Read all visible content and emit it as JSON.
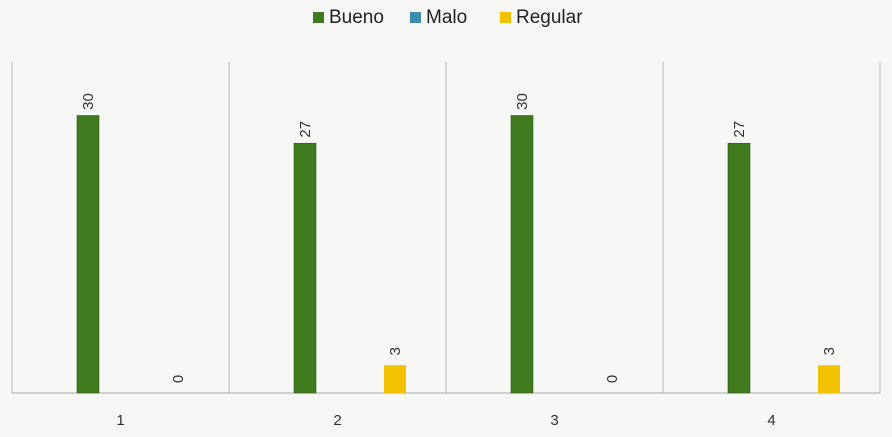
{
  "chart_data": {
    "type": "bar",
    "categories": [
      "1",
      "2",
      "3",
      "4"
    ],
    "series": [
      {
        "name": "Bueno",
        "color": "#3f7a1e",
        "values": [
          30,
          27,
          30,
          27
        ]
      },
      {
        "name": "Malo",
        "color": "#3d8cac",
        "values": [
          0,
          0,
          0,
          0
        ]
      },
      {
        "name": "Regular",
        "color": "#f2c200",
        "values": [
          0,
          3,
          0,
          3
        ]
      }
    ],
    "data_labels": [
      {
        "series": "Bueno",
        "values": [
          "30",
          "27",
          "30",
          "27"
        ]
      },
      {
        "series": "Regular",
        "values": [
          "0",
          "3",
          "0",
          "3"
        ]
      }
    ],
    "ylim": [
      0,
      32
    ],
    "legend_position": "top-center",
    "grid": "vertical category separators"
  }
}
